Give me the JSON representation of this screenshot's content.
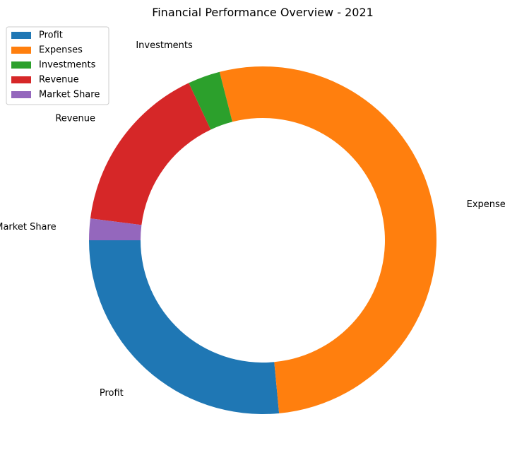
{
  "chart_data": {
    "type": "pie",
    "donut": true,
    "title": "Financial Performance Overview - 2021",
    "start_angle": 180,
    "direction": "counterclockwise",
    "categories": [
      "Profit",
      "Expenses",
      "Investments",
      "Revenue",
      "Market Share"
    ],
    "values": [
      26.5,
      52.5,
      3.0,
      16.0,
      2.0
    ],
    "colors": [
      "#1f77b4",
      "#ff7f0e",
      "#2ca02c",
      "#d62728",
      "#9467bd"
    ],
    "legend": {
      "position": "top-left",
      "entries": [
        "Profit",
        "Expenses",
        "Investments",
        "Revenue",
        "Market Share"
      ]
    }
  }
}
